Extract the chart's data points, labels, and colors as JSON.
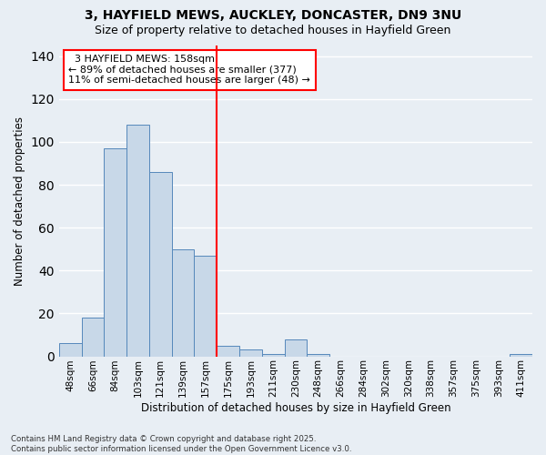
{
  "title1": "3, HAYFIELD MEWS, AUCKLEY, DONCASTER, DN9 3NU",
  "title2": "Size of property relative to detached houses in Hayfield Green",
  "xlabel": "Distribution of detached houses by size in Hayfield Green",
  "ylabel": "Number of detached properties",
  "footer": "Contains HM Land Registry data © Crown copyright and database right 2025.\nContains public sector information licensed under the Open Government Licence v3.0.",
  "bin_labels": [
    "48sqm",
    "66sqm",
    "84sqm",
    "103sqm",
    "121sqm",
    "139sqm",
    "157sqm",
    "175sqm",
    "193sqm",
    "211sqm",
    "230sqm",
    "248sqm",
    "266sqm",
    "284sqm",
    "302sqm",
    "320sqm",
    "338sqm",
    "357sqm",
    "375sqm",
    "393sqm",
    "411sqm"
  ],
  "bar_values": [
    6,
    18,
    97,
    108,
    86,
    50,
    47,
    5,
    3,
    1,
    8,
    1,
    0,
    0,
    0,
    0,
    0,
    0,
    0,
    0,
    1
  ],
  "bar_color": "#c8d8e8",
  "bar_edge_color": "#5588bb",
  "vline_color": "red",
  "annotation_text": "  3 HAYFIELD MEWS: 158sqm\n← 89% of detached houses are smaller (377)\n11% of semi-detached houses are larger (48) →",
  "annotation_box_color": "white",
  "annotation_box_edge": "red",
  "ylim": [
    0,
    145
  ],
  "yticks": [
    0,
    20,
    40,
    60,
    80,
    100,
    120,
    140
  ],
  "background_color": "#e8eef4",
  "grid_color": "white",
  "vline_position": 6.5
}
